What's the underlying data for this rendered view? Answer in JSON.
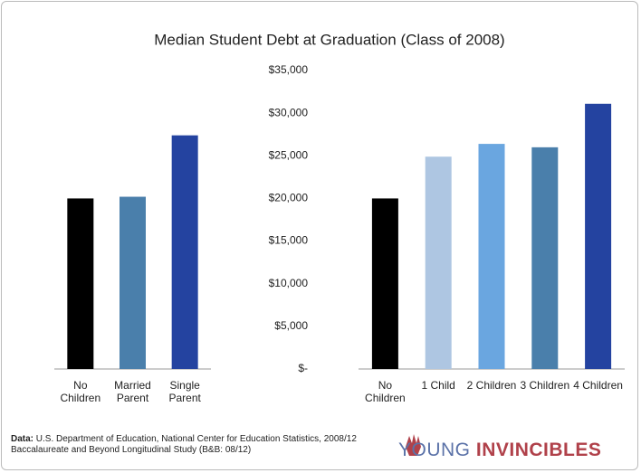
{
  "chart_data": {
    "type": "bar",
    "title": "Median Student Debt at Graduation (Class of 2008)",
    "ylim": [
      0,
      35000
    ],
    "yticks": [
      {
        "value": 0,
        "label": "$-"
      },
      {
        "value": 5000,
        "label": "$5,000"
      },
      {
        "value": 10000,
        "label": "$10,000"
      },
      {
        "value": 15000,
        "label": "$15,000"
      },
      {
        "value": 20000,
        "label": "$20,000"
      },
      {
        "value": 25000,
        "label": "$25,000"
      },
      {
        "value": 30000,
        "label": "$30,000"
      },
      {
        "value": 35000,
        "label": "$35,000"
      }
    ],
    "groups": [
      {
        "categories": [
          "No Children",
          "Married Parent",
          "Single Parent"
        ],
        "values": [
          20000,
          20200,
          27400
        ],
        "colors": [
          "#000000",
          "#4a7fab",
          "#2443a0"
        ]
      },
      {
        "categories": [
          "No Children",
          "1 Child",
          "2 Children",
          "3 Children",
          "4 Children"
        ],
        "values": [
          20000,
          24900,
          26400,
          26000,
          31100
        ],
        "colors": [
          "#000000",
          "#aec6e2",
          "#6aa6e0",
          "#4a7fab",
          "#2443a0"
        ]
      }
    ]
  },
  "source_label": "Data:",
  "source": "U.S. Department of Education, National Center for Education Statistics, 2008/12 Baccalaureate and Beyond Longitudinal Study (B&B: 08/12)",
  "brand": {
    "first": "YOUNG",
    "second": "INVINCIBLES"
  }
}
